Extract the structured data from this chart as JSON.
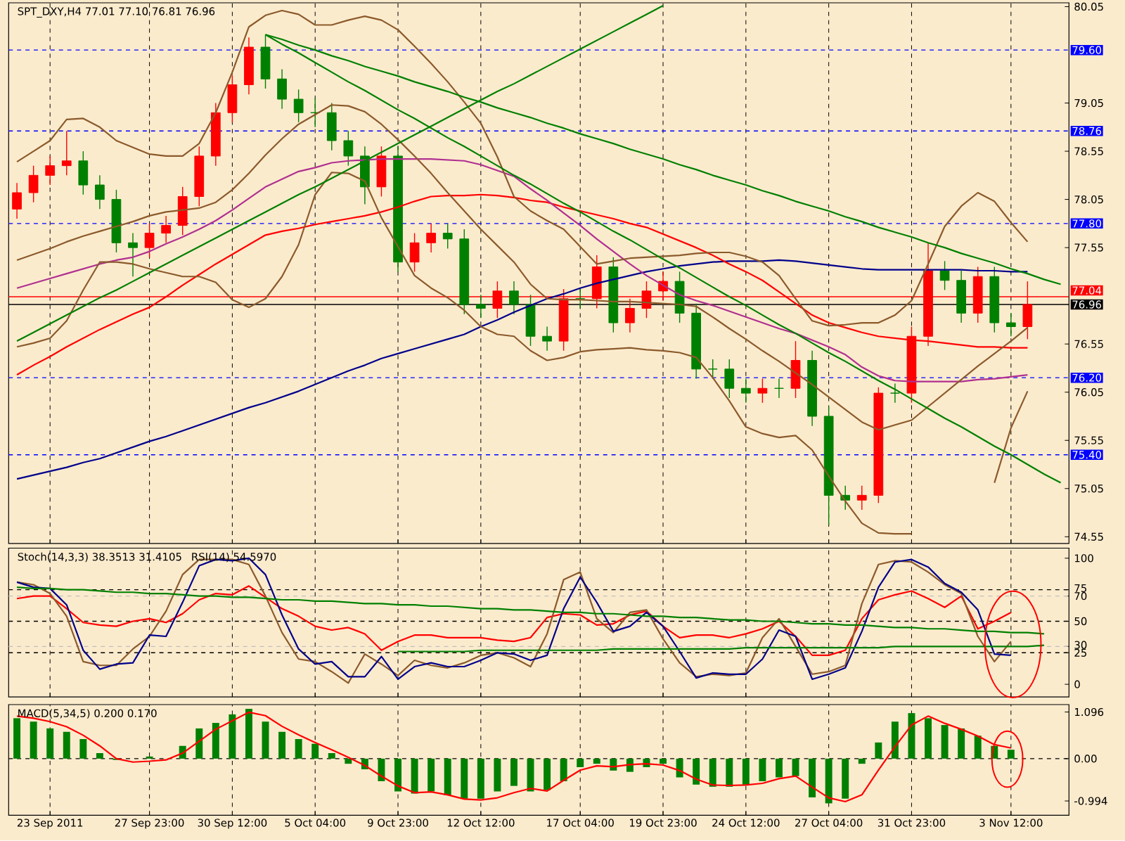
{
  "chart_data": [
    {
      "type": "candlestick",
      "title": "SPT_DXY,H4 77.01 77.10 76.81 76.96",
      "categories": [
        null,
        null,
        null,
        null,
        null,
        null,
        null,
        null,
        null,
        null,
        null,
        null,
        null,
        null,
        null,
        null,
        null,
        null,
        null,
        null,
        null,
        null,
        null,
        null,
        null,
        null,
        null,
        null,
        null,
        null,
        null,
        null,
        null,
        null,
        null,
        null,
        null,
        null,
        null,
        null,
        null,
        null,
        null,
        null,
        null,
        null,
        null,
        null,
        null,
        null,
        null,
        null,
        null,
        null,
        null,
        null,
        null,
        null,
        null,
        null,
        null,
        null,
        null,
        null
      ],
      "ohlc": [
        [
          77.95,
          78.22,
          77.85,
          78.12
        ],
        [
          78.12,
          78.4,
          78.02,
          78.3
        ],
        [
          78.3,
          78.5,
          78.2,
          78.4
        ],
        [
          78.4,
          78.76,
          78.3,
          78.45
        ],
        [
          78.45,
          78.55,
          78.1,
          78.2
        ],
        [
          78.2,
          78.3,
          77.95,
          78.05
        ],
        [
          78.05,
          78.15,
          77.5,
          77.6
        ],
        [
          77.6,
          77.7,
          77.25,
          77.55
        ],
        [
          77.55,
          77.8,
          77.45,
          77.7
        ],
        [
          77.7,
          77.88,
          77.6,
          77.78
        ],
        [
          77.78,
          78.18,
          77.68,
          78.08
        ],
        [
          78.08,
          78.6,
          77.98,
          78.5
        ],
        [
          78.5,
          79.05,
          78.4,
          78.95
        ],
        [
          78.95,
          79.34,
          78.85,
          79.24
        ],
        [
          79.24,
          79.73,
          79.14,
          79.63
        ],
        [
          79.63,
          79.76,
          79.2,
          79.3
        ],
        [
          79.3,
          79.4,
          78.99,
          79.09
        ],
        [
          79.09,
          79.19,
          78.85,
          78.95
        ],
        [
          78.95,
          79.1,
          78.8,
          78.95
        ],
        [
          78.95,
          79.05,
          78.56,
          78.66
        ],
        [
          78.66,
          78.76,
          78.4,
          78.5
        ],
        [
          78.5,
          78.6,
          78.0,
          78.18
        ],
        [
          78.18,
          78.6,
          78.08,
          78.5
        ],
        [
          78.5,
          78.6,
          77.3,
          77.4
        ],
        [
          77.4,
          77.7,
          77.3,
          77.6
        ],
        [
          77.6,
          77.8,
          77.5,
          77.7
        ],
        [
          77.7,
          77.8,
          77.54,
          77.64
        ],
        [
          77.64,
          77.74,
          76.86,
          76.96
        ],
        [
          76.96,
          77.06,
          76.82,
          76.92
        ],
        [
          76.92,
          77.2,
          76.82,
          77.1
        ],
        [
          77.1,
          77.2,
          76.86,
          76.96
        ],
        [
          76.96,
          77.06,
          76.53,
          76.63
        ],
        [
          76.63,
          76.73,
          76.48,
          76.58
        ],
        [
          76.58,
          77.12,
          76.48,
          77.02
        ],
        [
          77.02,
          77.12,
          76.92,
          77.02
        ],
        [
          77.02,
          77.47,
          76.92,
          77.35
        ],
        [
          77.35,
          77.45,
          76.67,
          76.77
        ],
        [
          76.77,
          77.02,
          76.67,
          76.92
        ],
        [
          76.92,
          77.2,
          76.82,
          77.1
        ],
        [
          77.1,
          77.3,
          77.0,
          77.2
        ],
        [
          77.2,
          77.3,
          76.77,
          76.87
        ],
        [
          76.87,
          76.97,
          76.19,
          76.29
        ],
        [
          76.29,
          76.39,
          76.19,
          76.29
        ],
        [
          76.29,
          76.39,
          75.99,
          76.09
        ],
        [
          76.09,
          76.19,
          75.94,
          76.04
        ],
        [
          76.04,
          76.19,
          75.94,
          76.09
        ],
        [
          76.09,
          76.19,
          75.99,
          76.09
        ],
        [
          76.09,
          76.58,
          75.99,
          76.38
        ],
        [
          76.38,
          76.48,
          75.7,
          75.8
        ],
        [
          75.8,
          75.9,
          74.67,
          74.98
        ],
        [
          74.98,
          75.08,
          74.83,
          74.93
        ],
        [
          74.93,
          75.08,
          74.83,
          74.98
        ],
        [
          74.98,
          76.1,
          74.9,
          76.04
        ],
        [
          76.04,
          76.14,
          75.94,
          76.04
        ],
        [
          76.04,
          76.73,
          75.94,
          76.63
        ],
        [
          76.63,
          77.6,
          76.53,
          77.31
        ],
        [
          77.31,
          77.41,
          77.11,
          77.21
        ],
        [
          77.21,
          77.31,
          76.77,
          76.87
        ],
        [
          76.87,
          77.35,
          76.77,
          77.25
        ],
        [
          77.25,
          77.35,
          76.67,
          76.77
        ],
        [
          76.77,
          76.87,
          76.63,
          76.73
        ],
        [
          76.73,
          77.2,
          76.6,
          76.96
        ],
        null,
        null
      ],
      "colors": [
        "#ff0000",
        "#ff0000",
        "#ff0000",
        "#ff0000",
        "#008000",
        "#008000",
        "#008000",
        "#008000",
        "#ff0000",
        "#ff0000",
        "#ff0000",
        "#ff0000",
        "#ff0000",
        "#ff0000",
        "#ff0000",
        "#008000",
        "#008000",
        "#008000",
        "#008000",
        "#008000",
        "#008000",
        "#008000",
        "#ff0000",
        "#008000",
        "#ff0000",
        "#ff0000",
        "#008000",
        "#008000",
        "#008000",
        "#ff0000",
        "#008000",
        "#008000",
        "#008000",
        "#ff0000",
        "#008000",
        "#ff0000",
        "#008000",
        "#ff0000",
        "#ff0000",
        "#ff0000",
        "#008000",
        "#008000",
        "#008000",
        "#008000",
        "#008000",
        "#ff0000",
        "#008000",
        "#ff0000",
        "#008000",
        "#008000",
        "#008000",
        "#ff0000",
        "#ff0000",
        "#008000",
        "#ff0000",
        "#ff0000",
        "#008000",
        "#008000",
        "#ff0000",
        "#008000",
        "#008000",
        "#ff0000",
        null,
        null
      ],
      "series": [
        {
          "type": "line",
          "color": "#00008b",
          "values": [
            75.15,
            75.19,
            75.23,
            75.27,
            75.32,
            75.36,
            75.42,
            75.48,
            75.54,
            75.59,
            75.65,
            75.71,
            75.77,
            75.83,
            75.89,
            75.94,
            76.0,
            76.06,
            76.13,
            76.2,
            76.27,
            76.33,
            76.4,
            76.45,
            76.5,
            76.55,
            76.6,
            76.65,
            76.73,
            76.8,
            76.88,
            76.95,
            77.02,
            77.07,
            77.13,
            77.18,
            77.22,
            77.26,
            77.3,
            77.33,
            77.36,
            77.38,
            77.4,
            77.41,
            77.41,
            77.41,
            77.42,
            77.41,
            77.39,
            77.37,
            77.35,
            77.33,
            77.32,
            77.32,
            77.32,
            77.32,
            77.32,
            77.32,
            77.31,
            77.31,
            77.3,
            77.3,
            null,
            null
          ]
        },
        {
          "type": "line",
          "color": "#ff0000",
          "values": [
            76.23,
            76.33,
            76.42,
            76.52,
            76.61,
            76.7,
            76.78,
            76.86,
            76.93,
            77.04,
            77.16,
            77.27,
            77.38,
            77.48,
            77.58,
            77.68,
            77.72,
            77.75,
            77.79,
            77.82,
            77.85,
            77.88,
            77.92,
            77.97,
            78.03,
            78.08,
            78.09,
            78.09,
            78.1,
            78.09,
            78.07,
            78.04,
            78.02,
            77.97,
            77.93,
            77.89,
            77.85,
            77.8,
            77.76,
            77.69,
            77.62,
            77.55,
            77.47,
            77.38,
            77.3,
            77.21,
            77.09,
            76.97,
            76.85,
            76.77,
            76.72,
            76.67,
            76.63,
            76.61,
            76.59,
            76.58,
            76.56,
            76.54,
            76.52,
            76.52,
            76.51,
            76.51,
            null,
            null
          ]
        },
        {
          "type": "line",
          "color": "#b03090",
          "values": [
            77.13,
            77.18,
            77.23,
            77.28,
            77.33,
            77.38,
            77.42,
            77.45,
            77.51,
            77.59,
            77.66,
            77.74,
            77.83,
            77.94,
            78.06,
            78.18,
            78.26,
            78.34,
            78.38,
            78.43,
            78.45,
            78.46,
            78.47,
            78.47,
            78.47,
            78.47,
            78.46,
            78.45,
            78.41,
            78.35,
            78.29,
            78.16,
            78.04,
            77.91,
            77.78,
            77.64,
            77.51,
            77.38,
            77.26,
            77.16,
            77.06,
            77.0,
            76.95,
            76.89,
            76.83,
            76.77,
            76.71,
            76.66,
            76.59,
            76.52,
            76.44,
            76.31,
            76.22,
            76.17,
            76.16,
            76.16,
            76.16,
            76.16,
            76.18,
            76.19,
            76.21,
            76.23,
            null,
            null
          ]
        },
        {
          "type": "line",
          "color": "#8b5a2b",
          "values": [
            78.44,
            78.55,
            78.66,
            78.88,
            78.89,
            78.8,
            78.66,
            78.59,
            78.52,
            78.5,
            78.5,
            78.63,
            78.95,
            79.37,
            79.84,
            79.96,
            80.01,
            79.97,
            79.86,
            79.86,
            79.91,
            79.95,
            79.91,
            79.81,
            79.64,
            79.46,
            79.27,
            79.06,
            78.84,
            78.49,
            78.08,
            77.93,
            77.83,
            77.74,
            77.56,
            77.38,
            77.41,
            77.44,
            77.45,
            77.46,
            77.47,
            77.49,
            77.5,
            77.5,
            77.46,
            77.4,
            77.26,
            77.02,
            76.79,
            76.74,
            76.75,
            76.77,
            76.77,
            76.85,
            77.0,
            77.38,
            77.77,
            77.98,
            78.12,
            78.03,
            77.81,
            77.61,
            null,
            null
          ]
        },
        {
          "type": "line",
          "color": "#8b5a2b",
          "values": [
            77.42,
            77.48,
            77.54,
            77.61,
            77.67,
            77.72,
            77.77,
            77.82,
            77.88,
            77.92,
            77.94,
            77.96,
            78.02,
            78.15,
            78.32,
            78.51,
            78.68,
            78.83,
            78.93,
            79.03,
            79.02,
            78.96,
            78.83,
            78.67,
            78.5,
            78.32,
            78.12,
            77.93,
            77.74,
            77.57,
            77.4,
            77.17,
            77.02,
            77.01,
            77.01,
            77.0,
            76.99,
            76.99,
            76.98,
            76.97,
            76.96,
            76.94,
            76.83,
            76.71,
            76.6,
            76.48,
            76.37,
            76.25,
            76.13,
            76.0,
            75.87,
            75.74,
            75.66,
            75.71,
            75.76,
            75.9,
            76.04,
            76.18,
            76.32,
            76.45,
            76.58,
            76.72,
            null,
            null
          ]
        },
        {
          "type": "line",
          "color": "#8b5a2b",
          "values": [
            76.52,
            76.56,
            76.61,
            76.79,
            77.11,
            77.4,
            77.4,
            77.38,
            77.33,
            77.29,
            77.25,
            77.25,
            77.19,
            77.01,
            76.93,
            77.02,
            77.25,
            77.58,
            78.1,
            78.33,
            78.32,
            78.24,
            77.86,
            77.56,
            77.26,
            77.13,
            77.03,
            76.9,
            76.73,
            76.65,
            76.63,
            76.48,
            76.38,
            76.41,
            76.47,
            76.49,
            76.5,
            76.51,
            76.49,
            76.48,
            76.46,
            76.41,
            76.2,
            75.96,
            75.69,
            75.62,
            75.58,
            75.6,
            75.45,
            75.18,
            74.92,
            74.69,
            74.59,
            74.58,
            74.58,
            null,
            null,
            null,
            null,
            75.11,
            75.68,
            76.06,
            null,
            null
          ]
        },
        {
          "type": "line",
          "color": "#008000",
          "values": [
            76.58,
            76.67,
            76.76,
            76.85,
            76.94,
            77.03,
            77.11,
            77.2,
            77.29,
            77.38,
            77.47,
            77.56,
            77.65,
            77.74,
            77.83,
            77.92,
            78.01,
            78.1,
            78.18,
            78.27,
            78.36,
            78.45,
            78.54,
            78.63,
            78.72,
            78.81,
            78.9,
            78.99,
            79.08,
            79.17,
            79.25,
            79.34,
            79.43,
            79.52,
            79.61,
            79.7,
            79.79,
            79.88,
            79.97,
            80.06,
            null,
            null,
            null,
            null,
            null,
            null,
            null,
            null,
            null,
            null,
            null,
            null,
            null,
            null,
            null,
            null,
            null,
            null,
            null,
            null,
            null,
            null,
            null,
            null
          ]
        },
        {
          "type": "line",
          "color": "#008000",
          "values": [
            null,
            null,
            null,
            null,
            null,
            null,
            null,
            null,
            null,
            null,
            null,
            null,
            null,
            null,
            null,
            79.76,
            79.71,
            79.65,
            79.6,
            79.54,
            79.49,
            79.43,
            79.38,
            79.33,
            79.27,
            79.22,
            79.17,
            79.11,
            79.06,
            79.0,
            78.95,
            78.9,
            78.84,
            78.79,
            78.73,
            78.68,
            78.63,
            78.57,
            78.52,
            78.47,
            78.41,
            78.36,
            78.3,
            78.25,
            78.2,
            78.14,
            78.09,
            78.03,
            77.98,
            77.93,
            77.87,
            77.82,
            77.76,
            77.71,
            77.66,
            77.6,
            77.55,
            77.49,
            77.44,
            77.39,
            77.33,
            77.28,
            77.22,
            77.17
          ]
        },
        {
          "type": "line",
          "color": "#008000",
          "values": [
            null,
            null,
            null,
            null,
            null,
            null,
            null,
            null,
            null,
            null,
            null,
            null,
            null,
            null,
            null,
            79.76,
            79.66,
            79.57,
            79.47,
            79.37,
            79.27,
            79.18,
            79.08,
            78.98,
            78.89,
            78.79,
            78.69,
            78.6,
            78.5,
            78.4,
            78.3,
            78.21,
            78.11,
            78.01,
            77.92,
            77.82,
            77.72,
            77.63,
            77.53,
            77.43,
            77.34,
            77.24,
            77.14,
            77.04,
            76.95,
            76.85,
            76.75,
            76.66,
            76.56,
            76.46,
            76.37,
            76.27,
            76.17,
            76.08,
            75.98,
            75.88,
            75.78,
            75.69,
            75.59,
            75.49,
            75.4,
            75.3,
            75.2,
            75.11
          ]
        }
      ],
      "ref_lines": [
        {
          "axis": "y",
          "value": 79.6,
          "label": "79.60",
          "color": "#0000ff",
          "line_style": "dashed"
        },
        {
          "axis": "y",
          "value": 78.76,
          "label": "78.76",
          "color": "#0000ff",
          "line_style": "dashed"
        },
        {
          "axis": "y",
          "value": 77.8,
          "label": "77.80",
          "color": "#0000ff",
          "line_style": "dashed"
        },
        {
          "axis": "y",
          "value": 76.96,
          "label": "76.96",
          "color": "#000000",
          "line_style": "solid"
        },
        {
          "axis": "y",
          "value": 77.04,
          "label": "77.04",
          "color": "#ff0000",
          "line_style": "solid"
        },
        {
          "axis": "y",
          "value": 76.2,
          "label": "76.20",
          "color": "#0000ff",
          "line_style": "dashed"
        },
        {
          "axis": "y",
          "value": 75.4,
          "label": "75.40",
          "color": "#0000ff",
          "line_style": "dashed"
        }
      ],
      "ylim": [
        74.48,
        80.09
      ],
      "yticks": [
        74.55,
        75.05,
        75.55,
        76.05,
        76.55,
        77.55,
        78.05,
        78.55,
        79.05,
        80.05
      ],
      "tick_labels": "y",
      "grid": "x"
    },
    {
      "type": "line",
      "title": "Stoch(14,3,3) 38.3513 31.4105",
      "subtitle": "RSI(14) 54.5970",
      "categories": [
        null,
        null,
        null,
        null,
        null,
        null,
        null,
        null,
        null,
        null,
        null,
        null,
        null,
        null,
        null,
        null,
        null,
        null,
        null,
        null,
        null,
        null,
        null,
        null,
        null,
        null,
        null,
        null,
        null,
        null,
        null,
        null,
        null,
        null,
        null,
        null,
        null,
        null,
        null,
        null,
        null,
        null,
        null,
        null,
        null,
        null,
        null,
        null,
        null,
        null,
        null,
        null,
        null,
        null,
        null,
        null,
        null,
        null,
        null,
        null,
        null,
        null,
        null,
        null
      ],
      "series": [
        {
          "color": "#ff0000",
          "values": [
            68,
            70,
            70,
            60,
            49,
            47,
            46,
            50,
            52,
            49,
            56,
            67,
            72,
            71,
            78,
            69,
            60,
            54,
            46,
            43,
            45,
            40,
            27,
            34,
            39,
            39,
            37,
            37,
            37,
            35,
            34,
            37,
            53,
            56,
            55,
            47,
            48,
            55,
            58,
            46,
            37,
            39,
            39,
            37,
            40,
            44,
            50,
            38,
            23,
            23,
            27,
            52,
            67,
            71,
            74,
            68,
            61,
            70,
            44,
            50,
            57,
            null,
            null,
            null
          ]
        },
        {
          "color": "#8b5a2b",
          "values": [
            81,
            79,
            72,
            54,
            18,
            15,
            15,
            28,
            38,
            58,
            87,
            99,
            99,
            99,
            95,
            70,
            41,
            20,
            18,
            10,
            1,
            24,
            16,
            7,
            19,
            15,
            13,
            17,
            23,
            25,
            21,
            14,
            40,
            83,
            89,
            52,
            41,
            57,
            59,
            36,
            17,
            6,
            8,
            7,
            9,
            37,
            52,
            30,
            8,
            10,
            15,
            64,
            95,
            98,
            97,
            89,
            79,
            72,
            38,
            18,
            34,
            null,
            null,
            null
          ]
        },
        {
          "color": "#00008b",
          "values": [
            81,
            77,
            76,
            63,
            27,
            12,
            16,
            17,
            39,
            38,
            65,
            94,
            99,
            98,
            100,
            87,
            55,
            28,
            16,
            18,
            6,
            6,
            22,
            4,
            14,
            17,
            14,
            14,
            19,
            25,
            24,
            19,
            23,
            60,
            85,
            65,
            42,
            46,
            57,
            46,
            26,
            5,
            9,
            8,
            8,
            20,
            43,
            38,
            4,
            8,
            13,
            42,
            77,
            97,
            99,
            93,
            80,
            73,
            59,
            24,
            23,
            null,
            null,
            null
          ]
        },
        {
          "color": "#008000",
          "values": [
            77,
            76,
            76,
            75,
            75,
            74,
            73,
            73,
            72,
            72,
            71,
            70,
            70,
            69,
            69,
            68,
            67,
            67,
            66,
            66,
            65,
            64,
            64,
            63,
            63,
            62,
            62,
            61,
            60,
            60,
            59,
            59,
            58,
            57,
            57,
            56,
            56,
            55,
            54,
            54,
            53,
            53,
            52,
            51,
            51,
            50,
            50,
            49,
            48,
            48,
            47,
            47,
            46,
            45,
            45,
            44,
            44,
            43,
            42,
            42,
            41,
            41,
            40,
            null
          ]
        },
        {
          "color": "#008000",
          "values": [
            null,
            null,
            null,
            null,
            null,
            null,
            null,
            null,
            null,
            null,
            null,
            null,
            null,
            null,
            null,
            null,
            null,
            null,
            null,
            null,
            null,
            null,
            null,
            26,
            26,
            26,
            26,
            26,
            27,
            27,
            27,
            27,
            27,
            27,
            27,
            27,
            28,
            28,
            28,
            28,
            28,
            28,
            28,
            28,
            29,
            29,
            29,
            29,
            29,
            29,
            29,
            29,
            29,
            30,
            30,
            30,
            30,
            30,
            30,
            30,
            30,
            30,
            31,
            null
          ]
        }
      ],
      "ref_lines": [
        {
          "axis": "y",
          "value": 75,
          "color": "#000000",
          "line_style": "dashed"
        },
        {
          "axis": "y",
          "value": 70,
          "color": "#c0c0c0",
          "line_style": "dashed"
        },
        {
          "axis": "y",
          "value": 50,
          "color": "#000000",
          "line_style": "dashed"
        },
        {
          "axis": "y",
          "value": 30,
          "color": "#c0c0c0",
          "line_style": "dashed"
        },
        {
          "axis": "y",
          "value": 25,
          "color": "#000000",
          "line_style": "dashed"
        }
      ],
      "ylim": [
        -10,
        108
      ],
      "yticks": [
        0,
        25,
        30,
        50,
        70,
        75,
        100
      ],
      "tick_labels": "y",
      "grid": "x"
    },
    {
      "type": "bar",
      "title": "MACD(5,34,5) 0.200 0.170",
      "color": "#008000",
      "categories": [
        null,
        null,
        "23 Sep 2011",
        null,
        null,
        null,
        null,
        null,
        "27 Sep 23:00",
        null,
        null,
        null,
        null,
        "30 Sep 12:00",
        null,
        null,
        null,
        null,
        "5 Oct 04:00",
        null,
        null,
        null,
        null,
        "9 Oct 23:00",
        null,
        null,
        null,
        null,
        "12 Oct 12:00",
        null,
        null,
        null,
        null,
        null,
        "17 Oct 04:00",
        null,
        null,
        null,
        null,
        "19 Oct 23:00",
        null,
        null,
        null,
        null,
        "24 Oct 12:00",
        null,
        null,
        null,
        null,
        "27 Oct 04:00",
        null,
        null,
        null,
        null,
        "31 Oct 23:00",
        null,
        null,
        null,
        null,
        null,
        "3 Nov 12:00",
        null,
        null,
        null
      ],
      "values": [
        0.95,
        0.87,
        0.71,
        0.63,
        0.46,
        0.13,
        -0.03,
        0,
        0.05,
        0,
        0.3,
        0.71,
        0.84,
        1.04,
        1.17,
        0.87,
        0.63,
        0.46,
        0.35,
        0.13,
        -0.12,
        -0.25,
        -0.53,
        -0.77,
        -0.82,
        -0.77,
        -0.86,
        -0.94,
        -0.94,
        -0.77,
        -0.64,
        -0.77,
        -0.74,
        -0.53,
        -0.2,
        -0.12,
        -0.28,
        -0.31,
        -0.2,
        -0.12,
        -0.44,
        -0.61,
        -0.66,
        -0.66,
        -0.61,
        -0.53,
        -0.44,
        -0.41,
        -0.91,
        -1.05,
        -0.94,
        -0.12,
        0.38,
        0.87,
        1.07,
        0.95,
        0.79,
        0.71,
        0.54,
        0.3,
        0.21,
        null,
        null,
        null
      ],
      "series": [
        {
          "type": "line",
          "color": "#ff0000",
          "values": [
            1.0,
            0.95,
            0.87,
            0.75,
            0.55,
            0.3,
            0.0,
            -0.08,
            -0.06,
            -0.03,
            0.13,
            0.41,
            0.69,
            0.89,
            1.09,
            1.01,
            0.76,
            0.56,
            0.38,
            0.21,
            0.03,
            -0.16,
            -0.41,
            -0.64,
            -0.8,
            -0.78,
            -0.85,
            -0.95,
            -0.97,
            -0.92,
            -0.8,
            -0.7,
            -0.76,
            -0.51,
            -0.27,
            -0.17,
            -0.19,
            -0.14,
            -0.12,
            -0.15,
            -0.28,
            -0.48,
            -0.62,
            -0.63,
            -0.62,
            -0.58,
            -0.47,
            -0.41,
            -0.67,
            -0.92,
            -1.01,
            -0.85,
            -0.27,
            0.28,
            0.79,
            1.0,
            0.83,
            0.69,
            0.53,
            0.33,
            0.25,
            null,
            null,
            null
          ]
        }
      ],
      "ref_lines": [
        {
          "axis": "y",
          "value": 0,
          "color": "#000000",
          "line_style": "dashed"
        }
      ],
      "ylim": [
        -1.33,
        1.27
      ],
      "yticks": [
        -0.994,
        {
          "value": 0,
          "label": "0.00"
        },
        1.096
      ],
      "grid": "x"
    }
  ]
}
